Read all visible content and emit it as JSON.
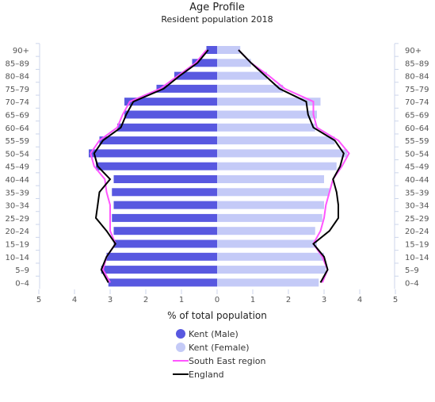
{
  "chart_data": {
    "type": "bar",
    "title": "Age Profile",
    "subtitle": "Resident population 2018",
    "xlabel": "% of total population",
    "xlim": [
      -5,
      5
    ],
    "x_ticks": [
      "5",
      "4",
      "3",
      "2",
      "1",
      "0",
      "1",
      "2",
      "3",
      "4",
      "5"
    ],
    "categories": [
      "90+",
      "85–89",
      "80–84",
      "75–79",
      "70–74",
      "65–69",
      "60–64",
      "55–59",
      "50–54",
      "45–49",
      "40–44",
      "35–39",
      "30–34",
      "25–29",
      "20–24",
      "15–19",
      "10–14",
      "5–9",
      "0–4"
    ],
    "series": [
      {
        "name": "Kent (Male)",
        "kind": "bar",
        "side": "left",
        "color": "#5858e0",
        "values": [
          0.3,
          0.7,
          1.2,
          1.7,
          2.6,
          2.6,
          2.8,
          3.3,
          3.6,
          3.4,
          2.9,
          2.95,
          2.9,
          2.95,
          2.9,
          2.9,
          3.1,
          3.25,
          3.05
        ]
      },
      {
        "name": "Kent (Female)",
        "kind": "bar",
        "side": "right",
        "color": "#c4caf7",
        "values": [
          0.65,
          0.95,
          1.4,
          1.85,
          2.9,
          2.8,
          2.75,
          3.3,
          3.65,
          3.35,
          3.0,
          3.15,
          3.0,
          2.95,
          2.75,
          2.8,
          3.0,
          3.05,
          2.85
        ]
      },
      {
        "name": "South East region",
        "kind": "line",
        "color": "#ff55ff",
        "left": [
          0.3,
          0.6,
          1.1,
          1.6,
          2.45,
          2.65,
          2.8,
          3.3,
          3.55,
          3.45,
          3.15,
          3.1,
          3.0,
          3.0,
          3.0,
          2.85,
          3.1,
          3.2,
          3.0
        ],
        "right": [
          0.6,
          0.95,
          1.45,
          1.9,
          2.7,
          2.7,
          2.8,
          3.4,
          3.7,
          3.5,
          3.25,
          3.15,
          3.05,
          3.0,
          2.9,
          2.7,
          2.95,
          3.1,
          2.95
        ]
      },
      {
        "name": "England",
        "kind": "line",
        "color": "#000000",
        "left": [
          0.25,
          0.55,
          1.05,
          1.5,
          2.35,
          2.55,
          2.7,
          3.2,
          3.45,
          3.35,
          3.0,
          3.3,
          3.35,
          3.4,
          3.1,
          2.85,
          3.1,
          3.25,
          3.05
        ],
        "right": [
          0.6,
          0.95,
          1.35,
          1.75,
          2.5,
          2.55,
          2.7,
          3.3,
          3.55,
          3.45,
          3.25,
          3.35,
          3.4,
          3.4,
          3.15,
          2.7,
          3.0,
          3.1,
          2.9
        ]
      }
    ],
    "legend_position": "bottom"
  }
}
